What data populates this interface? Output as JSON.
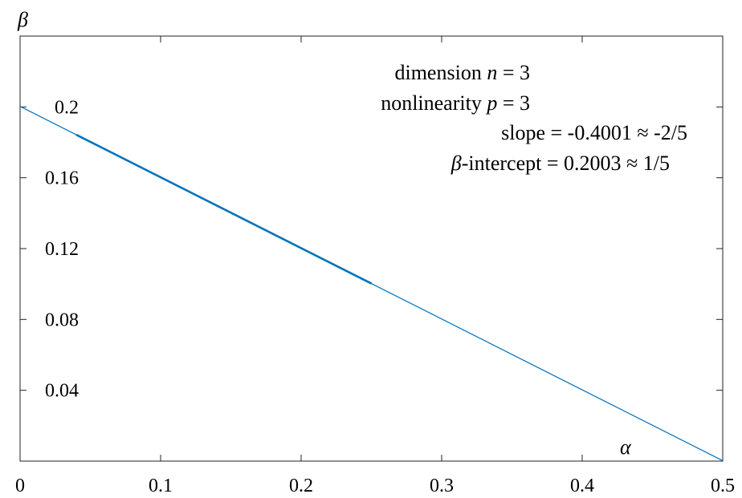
{
  "chart_data": {
    "type": "line",
    "xlabel": "α",
    "ylabel": "β",
    "xlim": [
      0,
      0.5
    ],
    "ylim": [
      0,
      0.24
    ],
    "x_ticks": [
      "0",
      "0.1",
      "0.2",
      "0.3",
      "0.4",
      "0.5"
    ],
    "y_ticks": [
      "0.04",
      "0.08",
      "0.12",
      "0.16",
      "0.2"
    ],
    "x_tick_values": [
      0,
      0.1,
      0.2,
      0.3,
      0.4,
      0.5
    ],
    "y_tick_values": [
      0.04,
      0.08,
      0.12,
      0.16,
      0.2
    ],
    "grid": false,
    "series": [
      {
        "color": "#0072BD",
        "x": [
          0,
          0.5
        ],
        "y": [
          0.2003,
          0.00025
        ]
      },
      {
        "color": "#0072BD",
        "emphasis": "thick",
        "x": [
          0.04,
          0.25
        ],
        "y": [
          0.18429,
          0.10028
        ]
      }
    ],
    "annotations": [
      {
        "parts": [
          "dimension  ",
          "n",
          " =  3"
        ]
      },
      {
        "parts": [
          "nonlinearity  ",
          "p",
          " =  3"
        ]
      },
      {
        "parts": [
          "slope = -0.4001 ≈ -2/5"
        ]
      },
      {
        "parts": [
          "β",
          "-intercept =  0.2003 ≈  1/5"
        ]
      }
    ]
  }
}
